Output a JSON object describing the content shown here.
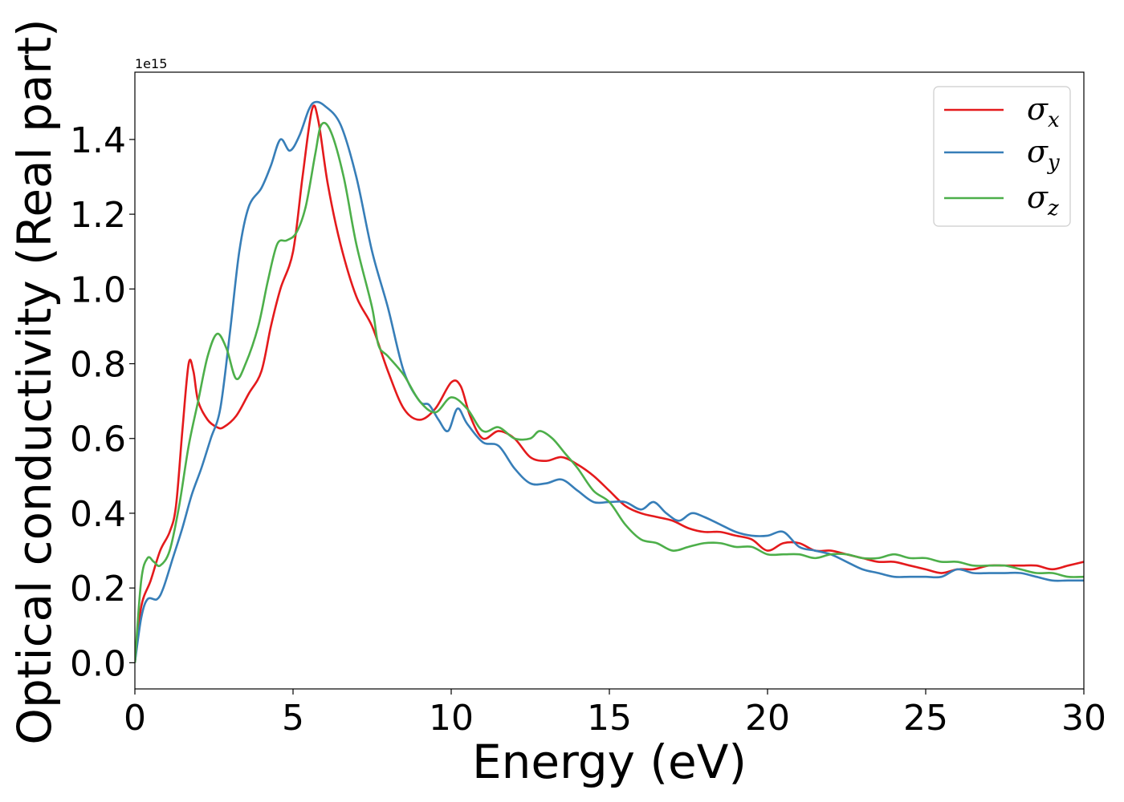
{
  "chart_data": {
    "type": "line",
    "title": "",
    "xlabel": "Energy (eV)",
    "ylabel": "Optical conductivity (Real part)",
    "y_offset_label": "1e15",
    "xlim": [
      0,
      30
    ],
    "ylim": [
      -0.07,
      1.58
    ],
    "xticks": [
      0,
      5,
      10,
      15,
      20,
      25,
      30
    ],
    "xtick_labels": [
      "0",
      "5",
      "10",
      "15",
      "20",
      "25",
      "30"
    ],
    "yticks": [
      0.0,
      0.2,
      0.4,
      0.6,
      0.8,
      1.0,
      1.2,
      1.4
    ],
    "ytick_labels": [
      "0.0",
      "0.2",
      "0.4",
      "0.6",
      "0.8",
      "1.0",
      "1.2",
      "1.4"
    ],
    "grid": false,
    "legend_position": "top-right",
    "series": [
      {
        "name": "σx",
        "legend_base": "σ",
        "legend_sub": "x",
        "color": "#e41a1c",
        "points": [
          [
            0,
            0.0
          ],
          [
            0.2,
            0.15
          ],
          [
            0.5,
            0.22
          ],
          [
            0.8,
            0.3
          ],
          [
            1.1,
            0.35
          ],
          [
            1.3,
            0.42
          ],
          [
            1.5,
            0.62
          ],
          [
            1.7,
            0.8
          ],
          [
            1.85,
            0.78
          ],
          [
            2.0,
            0.7
          ],
          [
            2.3,
            0.65
          ],
          [
            2.6,
            0.63
          ],
          [
            2.8,
            0.63
          ],
          [
            3.2,
            0.66
          ],
          [
            3.6,
            0.72
          ],
          [
            4.0,
            0.78
          ],
          [
            4.3,
            0.9
          ],
          [
            4.6,
            1.0
          ],
          [
            5.0,
            1.1
          ],
          [
            5.3,
            1.3
          ],
          [
            5.6,
            1.48
          ],
          [
            5.8,
            1.45
          ],
          [
            6.1,
            1.28
          ],
          [
            6.5,
            1.12
          ],
          [
            7.0,
            0.98
          ],
          [
            7.5,
            0.9
          ],
          [
            8.0,
            0.78
          ],
          [
            8.5,
            0.68
          ],
          [
            9.0,
            0.65
          ],
          [
            9.5,
            0.68
          ],
          [
            10.0,
            0.75
          ],
          [
            10.3,
            0.74
          ],
          [
            10.6,
            0.66
          ],
          [
            11.0,
            0.6
          ],
          [
            11.5,
            0.62
          ],
          [
            12.0,
            0.6
          ],
          [
            12.5,
            0.55
          ],
          [
            13.0,
            0.54
          ],
          [
            13.5,
            0.55
          ],
          [
            14.0,
            0.53
          ],
          [
            14.5,
            0.5
          ],
          [
            15.0,
            0.46
          ],
          [
            15.5,
            0.42
          ],
          [
            16.0,
            0.4
          ],
          [
            16.5,
            0.39
          ],
          [
            17.0,
            0.38
          ],
          [
            17.5,
            0.36
          ],
          [
            18.0,
            0.35
          ],
          [
            18.5,
            0.35
          ],
          [
            19.0,
            0.34
          ],
          [
            19.5,
            0.33
          ],
          [
            20.0,
            0.3
          ],
          [
            20.5,
            0.32
          ],
          [
            21.0,
            0.32
          ],
          [
            21.5,
            0.3
          ],
          [
            22.0,
            0.3
          ],
          [
            22.5,
            0.29
          ],
          [
            23.0,
            0.28
          ],
          [
            23.5,
            0.27
          ],
          [
            24.0,
            0.27
          ],
          [
            24.5,
            0.26
          ],
          [
            25.0,
            0.25
          ],
          [
            25.5,
            0.24
          ],
          [
            26.0,
            0.25
          ],
          [
            26.5,
            0.25
          ],
          [
            27.0,
            0.26
          ],
          [
            27.5,
            0.26
          ],
          [
            28.0,
            0.26
          ],
          [
            28.5,
            0.26
          ],
          [
            29.0,
            0.25
          ],
          [
            29.5,
            0.26
          ],
          [
            30.0,
            0.27
          ]
        ]
      },
      {
        "name": "σy",
        "legend_base": "σ",
        "legend_sub": "y",
        "color": "#377eb8",
        "points": [
          [
            0,
            0.0
          ],
          [
            0.2,
            0.12
          ],
          [
            0.4,
            0.17
          ],
          [
            0.7,
            0.17
          ],
          [
            0.9,
            0.2
          ],
          [
            1.2,
            0.28
          ],
          [
            1.5,
            0.36
          ],
          [
            1.8,
            0.45
          ],
          [
            2.1,
            0.52
          ],
          [
            2.4,
            0.6
          ],
          [
            2.7,
            0.68
          ],
          [
            3.0,
            0.88
          ],
          [
            3.3,
            1.1
          ],
          [
            3.6,
            1.22
          ],
          [
            4.0,
            1.27
          ],
          [
            4.3,
            1.33
          ],
          [
            4.6,
            1.4
          ],
          [
            4.9,
            1.37
          ],
          [
            5.2,
            1.41
          ],
          [
            5.5,
            1.48
          ],
          [
            5.7,
            1.5
          ],
          [
            6.0,
            1.49
          ],
          [
            6.5,
            1.44
          ],
          [
            7.0,
            1.3
          ],
          [
            7.5,
            1.1
          ],
          [
            8.0,
            0.95
          ],
          [
            8.5,
            0.78
          ],
          [
            9.0,
            0.7
          ],
          [
            9.3,
            0.69
          ],
          [
            9.6,
            0.65
          ],
          [
            9.9,
            0.62
          ],
          [
            10.2,
            0.68
          ],
          [
            10.5,
            0.64
          ],
          [
            11.0,
            0.59
          ],
          [
            11.5,
            0.58
          ],
          [
            12.0,
            0.52
          ],
          [
            12.5,
            0.48
          ],
          [
            13.0,
            0.48
          ],
          [
            13.5,
            0.49
          ],
          [
            14.0,
            0.46
          ],
          [
            14.5,
            0.43
          ],
          [
            15.0,
            0.43
          ],
          [
            15.5,
            0.43
          ],
          [
            16.0,
            0.41
          ],
          [
            16.4,
            0.43
          ],
          [
            16.8,
            0.4
          ],
          [
            17.2,
            0.38
          ],
          [
            17.6,
            0.4
          ],
          [
            18.0,
            0.39
          ],
          [
            18.5,
            0.37
          ],
          [
            19.0,
            0.35
          ],
          [
            19.5,
            0.34
          ],
          [
            20.0,
            0.34
          ],
          [
            20.5,
            0.35
          ],
          [
            21.0,
            0.31
          ],
          [
            21.5,
            0.3
          ],
          [
            22.0,
            0.29
          ],
          [
            22.5,
            0.27
          ],
          [
            23.0,
            0.25
          ],
          [
            23.5,
            0.24
          ],
          [
            24.0,
            0.23
          ],
          [
            24.5,
            0.23
          ],
          [
            25.0,
            0.23
          ],
          [
            25.5,
            0.23
          ],
          [
            26.0,
            0.25
          ],
          [
            26.5,
            0.24
          ],
          [
            27.0,
            0.24
          ],
          [
            27.5,
            0.24
          ],
          [
            28.0,
            0.24
          ],
          [
            28.5,
            0.23
          ],
          [
            29.0,
            0.22
          ],
          [
            29.5,
            0.22
          ],
          [
            30.0,
            0.22
          ]
        ]
      },
      {
        "name": "σz",
        "legend_base": "σ",
        "legend_sub": "z",
        "color": "#4daf4a",
        "points": [
          [
            0,
            0.0
          ],
          [
            0.2,
            0.22
          ],
          [
            0.4,
            0.28
          ],
          [
            0.6,
            0.27
          ],
          [
            0.8,
            0.26
          ],
          [
            1.1,
            0.3
          ],
          [
            1.4,
            0.42
          ],
          [
            1.7,
            0.58
          ],
          [
            2.0,
            0.7
          ],
          [
            2.3,
            0.82
          ],
          [
            2.6,
            0.88
          ],
          [
            2.9,
            0.84
          ],
          [
            3.2,
            0.76
          ],
          [
            3.5,
            0.8
          ],
          [
            3.9,
            0.9
          ],
          [
            4.2,
            1.02
          ],
          [
            4.5,
            1.12
          ],
          [
            4.8,
            1.13
          ],
          [
            5.1,
            1.15
          ],
          [
            5.4,
            1.22
          ],
          [
            5.7,
            1.36
          ],
          [
            5.9,
            1.44
          ],
          [
            6.2,
            1.42
          ],
          [
            6.6,
            1.3
          ],
          [
            7.0,
            1.12
          ],
          [
            7.5,
            0.95
          ],
          [
            7.7,
            0.85
          ],
          [
            8.0,
            0.82
          ],
          [
            8.5,
            0.77
          ],
          [
            9.0,
            0.7
          ],
          [
            9.5,
            0.67
          ],
          [
            10.0,
            0.71
          ],
          [
            10.5,
            0.68
          ],
          [
            11.0,
            0.62
          ],
          [
            11.5,
            0.63
          ],
          [
            12.0,
            0.6
          ],
          [
            12.5,
            0.6
          ],
          [
            12.8,
            0.62
          ],
          [
            13.2,
            0.6
          ],
          [
            13.6,
            0.56
          ],
          [
            14.0,
            0.52
          ],
          [
            14.5,
            0.46
          ],
          [
            15.0,
            0.43
          ],
          [
            15.5,
            0.37
          ],
          [
            16.0,
            0.33
          ],
          [
            16.5,
            0.32
          ],
          [
            17.0,
            0.3
          ],
          [
            17.5,
            0.31
          ],
          [
            18.0,
            0.32
          ],
          [
            18.5,
            0.32
          ],
          [
            19.0,
            0.31
          ],
          [
            19.5,
            0.31
          ],
          [
            20.0,
            0.29
          ],
          [
            20.5,
            0.29
          ],
          [
            21.0,
            0.29
          ],
          [
            21.5,
            0.28
          ],
          [
            22.0,
            0.29
          ],
          [
            22.5,
            0.29
          ],
          [
            23.0,
            0.28
          ],
          [
            23.5,
            0.28
          ],
          [
            24.0,
            0.29
          ],
          [
            24.5,
            0.28
          ],
          [
            25.0,
            0.28
          ],
          [
            25.5,
            0.27
          ],
          [
            26.0,
            0.27
          ],
          [
            26.5,
            0.26
          ],
          [
            27.0,
            0.26
          ],
          [
            27.5,
            0.26
          ],
          [
            28.0,
            0.25
          ],
          [
            28.5,
            0.24
          ],
          [
            29.0,
            0.24
          ],
          [
            29.5,
            0.23
          ],
          [
            30.0,
            0.23
          ]
        ]
      }
    ]
  }
}
